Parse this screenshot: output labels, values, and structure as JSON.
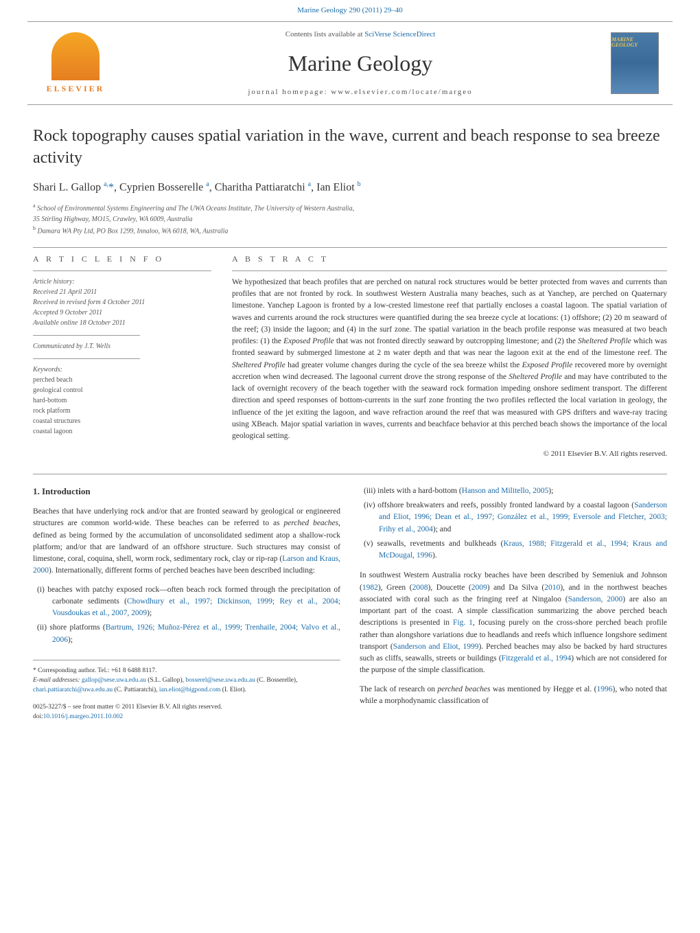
{
  "header": {
    "top_link": "Marine Geology 290 (2011) 29–40",
    "contents": "Contents lists available at",
    "contents_link": "SciVerse ScienceDirect",
    "journal": "Marine Geology",
    "homepage": "journal homepage: www.elsevier.com/locate/margeo",
    "elsevier": "ELSEVIER",
    "cover_text": "MARINE GEOLOGY"
  },
  "article": {
    "title": "Rock topography causes spatial variation in the wave, current and beach response to sea breeze activity",
    "authors_html": "Shari L. Gallop <sup>a,</sup><span class='star'>*</span>, Cyprien Bosserelle <sup>a</sup>, Charitha Pattiaratchi <sup>a</sup>, Ian Eliot <sup>b</sup>",
    "affiliations": [
      {
        "sup": "a",
        "text": "School of Environmental Systems Engineering and The UWA Oceans Institute, The University of Western Australia,"
      },
      {
        "sup": "",
        "text": "35 Stirling Highway, MO15, Crawley, WA 6009, Australia"
      },
      {
        "sup": "b",
        "text": "Damara WA Pty Ltd, PO Box 1299, Innaloo, WA 6018, WA, Australia"
      }
    ]
  },
  "info": {
    "label": "A R T I C L E    I N F O",
    "history_label": "Article history:",
    "history": [
      "Received 21 April 2011",
      "Received in revised form 4 October 2011",
      "Accepted 9 October 2011",
      "Available online 18 October 2011"
    ],
    "communicated": "Communicated by J.T. Wells",
    "keywords_label": "Keywords:",
    "keywords": [
      "perched beach",
      "geological control",
      "hard-bottom",
      "rock platform",
      "coastal structures",
      "coastal lagoon"
    ]
  },
  "abstract": {
    "label": "A B S T R A C T",
    "text": "We hypothesized that beach profiles that are perched on natural rock structures would be better protected from waves and currents than profiles that are not fronted by rock. In southwest Western Australia many beaches, such as at Yanchep, are perched on Quaternary limestone. Yanchep Lagoon is fronted by a low-crested limestone reef that partially encloses a coastal lagoon. The spatial variation of waves and currents around the rock structures were quantified during the sea breeze cycle at locations: (1) offshore; (2) 20 m seaward of the reef; (3) inside the lagoon; and (4) in the surf zone. The spatial variation in the beach profile response was measured at two beach profiles: (1) the Exposed Profile that was not fronted directly seaward by outcropping limestone; and (2) the Sheltered Profile which was fronted seaward by submerged limestone at 2 m water depth and that was near the lagoon exit at the end of the limestone reef. The Sheltered Profile had greater volume changes during the cycle of the sea breeze whilst the Exposed Profile recovered more by overnight accretion when wind decreased. The lagoonal current drove the strong response of the Sheltered Profile and may have contributed to the lack of overnight recovery of the beach together with the seaward rock formation impeding onshore sediment transport. The different direction and speed responses of bottom-currents in the surf zone fronting the two profiles reflected the local variation in geology, the influence of the jet exiting the lagoon, and wave refraction around the reef that was measured with GPS drifters and wave-ray tracing using XBeach. Major spatial variation in waves, currents and beachface behavior at this perched beach shows the importance of the local geological setting.",
    "copyright": "© 2011 Elsevier B.V. All rights reserved."
  },
  "body": {
    "intro_heading": "1. Introduction",
    "intro_p1": "Beaches that have underlying rock and/or that are fronted seaward by geological or engineered structures are common world-wide. These beaches can be referred to as perched beaches, defined as being formed by the accumulation of unconsolidated sediment atop a shallow-rock platform; and/or that are landward of an offshore structure. Such structures may consist of limestone, coral, coquina, shell, worm rock, sedimentary rock, clay or rip-rap (Larson and Kraus, 2000). Internationally, different forms of perched beaches have been described including:",
    "left_list": [
      "(i)  beaches with patchy exposed rock—often beach rock formed through the precipitation of carbonate sediments (Chowdhury et al., 1997; Dickinson, 1999; Rey et al., 2004; Vousdoukas et al., 2007, 2009);",
      "(ii)  shore platforms (Bartrum, 1926; Muñoz-Pérez et al., 1999; Trenhaile, 2004; Valvo et al., 2006);"
    ],
    "right_list": [
      "(iii)  inlets with a hard-bottom (Hanson and Militello, 2005);",
      "(iv)  offshore breakwaters and reefs, possibly fronted landward by a coastal lagoon (Sanderson and Eliot, 1996; Dean et al., 1997; González et al., 1999; Eversole and Fletcher, 2003; Frihy et al., 2004); and",
      "(v)  seawalls, revetments and bulkheads (Kraus, 1988; Fitzgerald et al., 1994; Kraus and McDougal, 1996)."
    ],
    "right_p1": "In southwest Western Australia rocky beaches have been described by Semeniuk and Johnson (1982), Green (2008), Doucette (2009) and Da Silva (2010), and in the northwest beaches associated with coral such as the fringing reef at Ningaloo (Sanderson, 2000) are also an important part of the coast. A simple classification summarizing the above perched beach descriptions is presented in Fig. 1, focusing purely on the cross-shore perched beach profile rather than alongshore variations due to headlands and reefs which influence longshore sediment transport (Sanderson and Eliot, 1999). Perched beaches may also be backed by hard structures such as cliffs, seawalls, streets or buildings (Fitzgerald et al., 1994) which are not considered for the purpose of the simple classification.",
    "right_p2": "The lack of research on perched beaches was mentioned by Hegge et al. (1996), who noted that while a morphodynamic classification of"
  },
  "footer": {
    "corresponding": "* Corresponding author. Tel.: +61 8 6488 8117.",
    "emails_label": "E-mail addresses:",
    "emails": "gallop@sese.uwa.edu.au (S.L. Gallop), bosserel@sese.uwa.edu.au (C. Bosserelle), chari.pattiaratchi@uwa.edu.au (C. Pattiaratchi), ian.eliot@bigpond.com (I. Eliot).",
    "issn": "0025-3227/$ – see front matter © 2011 Elsevier B.V. All rights reserved.",
    "doi": "doi:10.1016/j.margeo.2011.10.002"
  },
  "colors": {
    "link": "#1a6ba8",
    "text": "#333333",
    "muted": "#555555",
    "elsevier_orange": "#e67e22",
    "background": "#ffffff"
  }
}
